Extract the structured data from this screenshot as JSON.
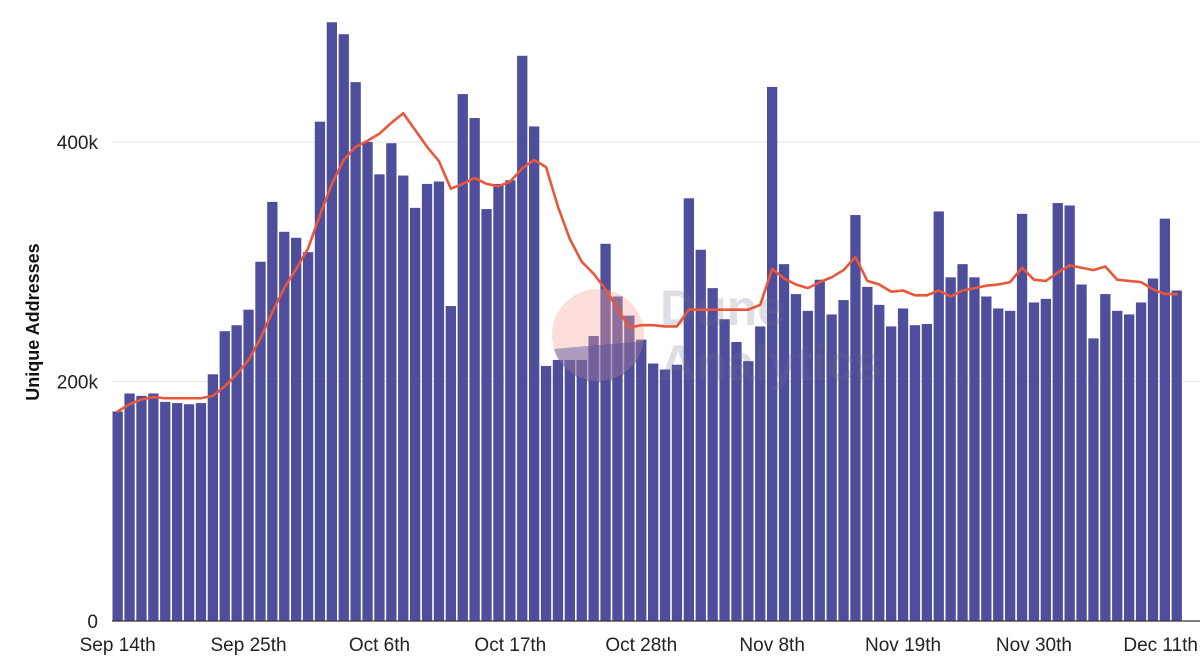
{
  "colors": {
    "bar": "#4f4e9c",
    "line": "#e8573a",
    "grid": "#e6e6e6",
    "axis": "#333333"
  },
  "watermark": {
    "line1": "Dune",
    "line2": "Analytics",
    "logo": "dune-logo-icon"
  },
  "chart_data": {
    "type": "bar",
    "title": "",
    "xlabel": "",
    "ylabel": "Unique Addresses",
    "ylim": [
      0,
      500000
    ],
    "yticks": [
      {
        "value": 0,
        "label": "0"
      },
      {
        "value": 200000,
        "label": "200k"
      },
      {
        "value": 400000,
        "label": "400k"
      }
    ],
    "xticks": [
      {
        "index": 0,
        "label": "Sep 14th"
      },
      {
        "index": 11,
        "label": "Sep 25th"
      },
      {
        "index": 22,
        "label": "Oct 6th"
      },
      {
        "index": 33,
        "label": "Oct 17th"
      },
      {
        "index": 44,
        "label": "Oct 28th"
      },
      {
        "index": 55,
        "label": "Nov 8th"
      },
      {
        "index": 66,
        "label": "Nov 19th"
      },
      {
        "index": 77,
        "label": "Nov 30th"
      },
      {
        "index": 88,
        "label": "Dec 11th"
      }
    ],
    "series": [
      {
        "name": "Unique Addresses",
        "type": "bar",
        "values": [
          175000,
          190000,
          188000,
          190000,
          183000,
          182000,
          181000,
          182000,
          206000,
          242000,
          247000,
          260000,
          300000,
          350000,
          325000,
          320000,
          308000,
          417000,
          500000,
          490000,
          450000,
          400000,
          373000,
          399000,
          372000,
          345000,
          365000,
          367000,
          263000,
          440000,
          420000,
          344000,
          365000,
          368000,
          472000,
          413000,
          213000,
          218000,
          218000,
          218000,
          238000,
          315000,
          271000,
          255000,
          235000,
          215000,
          210000,
          214000,
          353000,
          310000,
          278000,
          252000,
          233000,
          217000,
          246000,
          446000,
          298000,
          273000,
          259000,
          285000,
          256000,
          268000,
          339000,
          279000,
          264000,
          246000,
          261000,
          247000,
          248000,
          342000,
          287000,
          298000,
          287000,
          271000,
          261000,
          259000,
          340000,
          266000,
          269000,
          349000,
          347000,
          281000,
          236000,
          273000,
          259000,
          256000,
          266000,
          286000,
          336000,
          276000
        ]
      },
      {
        "name": "Moving average",
        "type": "line",
        "values": [
          175000,
          181000,
          185000,
          187000,
          186000,
          186000,
          186000,
          186000,
          188000,
          196000,
          206000,
          218000,
          236000,
          258000,
          278000,
          294000,
          311000,
          339000,
          365000,
          385000,
          396000,
          401000,
          407000,
          416000,
          424000,
          410000,
          396000,
          384000,
          361000,
          365000,
          370000,
          365000,
          363000,
          367000,
          378000,
          385000,
          379000,
          346000,
          319000,
          300000,
          290000,
          277000,
          261000,
          245000,
          247000,
          247000,
          246000,
          246000,
          260000,
          260000,
          260000,
          260000,
          260000,
          260000,
          264000,
          294000,
          286000,
          281000,
          278000,
          283000,
          287000,
          293000,
          304000,
          284000,
          281000,
          275000,
          276000,
          272000,
          272000,
          276000,
          271000,
          276000,
          278000,
          280000,
          281000,
          283000,
          295000,
          285000,
          284000,
          291000,
          297000,
          295000,
          293000,
          296000,
          285000,
          284000,
          283000,
          277000,
          273000,
          273000
        ]
      }
    ]
  }
}
